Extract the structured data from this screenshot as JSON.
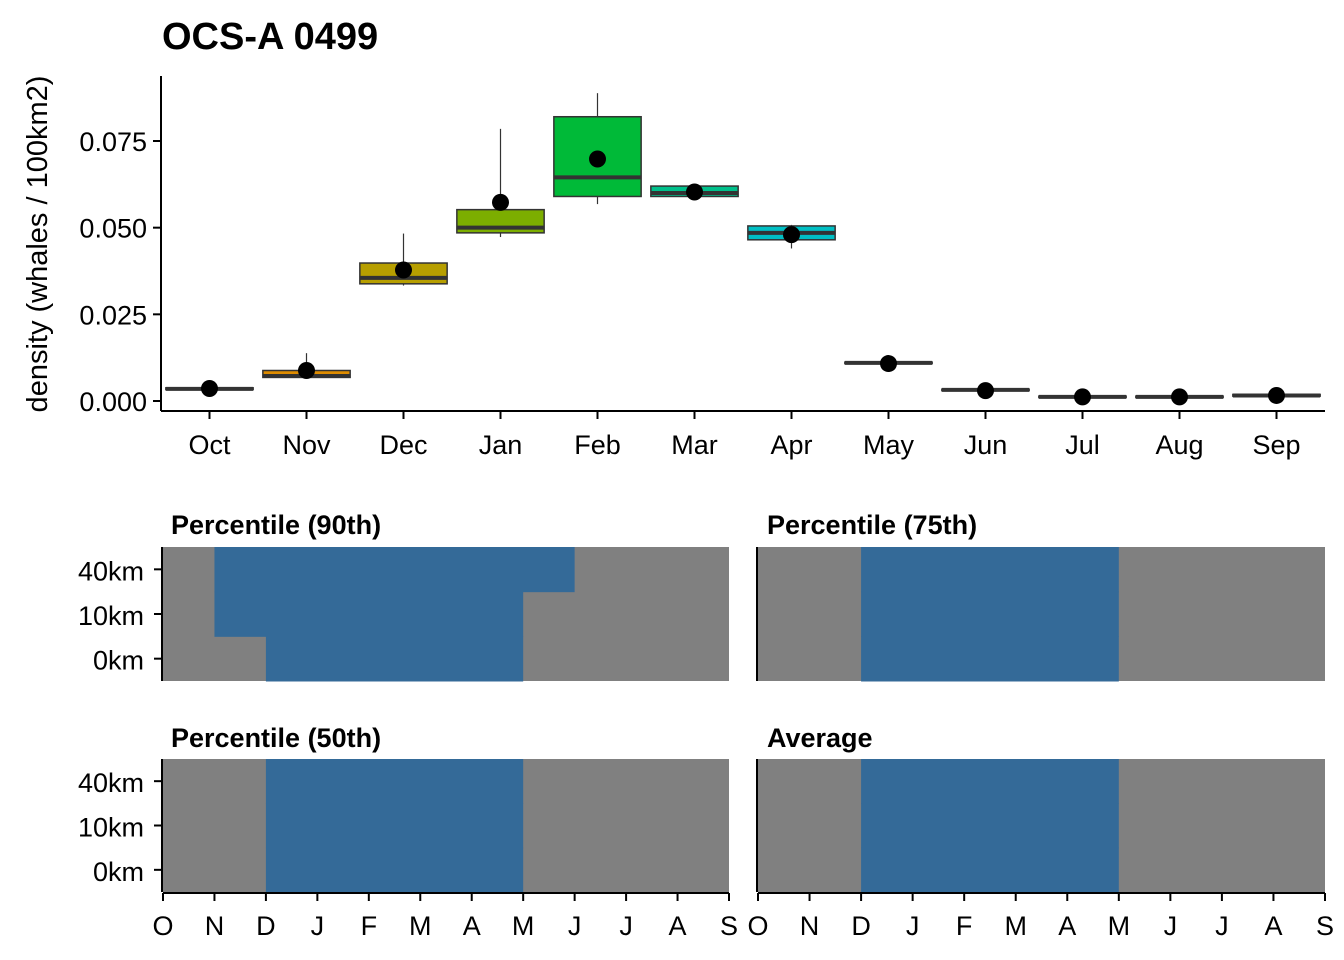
{
  "chart_data": [
    {
      "type": "box",
      "title": "OCS-A 0499",
      "ylabel": "density (whales / 100km2)",
      "xlabel": "",
      "ylim": [
        -0.003,
        0.093
      ],
      "yticks": [
        "0.000",
        "0.025",
        "0.050",
        "0.075"
      ],
      "ytick_values": [
        0.0,
        0.025,
        0.05,
        0.075
      ],
      "categories": [
        "Oct",
        "Nov",
        "Dec",
        "Jan",
        "Feb",
        "Mar",
        "Apr",
        "May",
        "Jun",
        "Jul",
        "Aug",
        "Sep"
      ],
      "boxes": [
        {
          "min": 0.0033,
          "q1": 0.0033,
          "median": 0.0035,
          "q3": 0.0038,
          "max": 0.0038,
          "mean": 0.0036,
          "color": "#F8766D"
        },
        {
          "min": 0.0065,
          "q1": 0.0068,
          "median": 0.0072,
          "q3": 0.0088,
          "max": 0.0138,
          "mean": 0.0088,
          "color": "#DE8C00"
        },
        {
          "min": 0.0333,
          "q1": 0.0338,
          "median": 0.0355,
          "q3": 0.0398,
          "max": 0.0483,
          "mean": 0.0378,
          "color": "#B79F00"
        },
        {
          "min": 0.0473,
          "q1": 0.0485,
          "median": 0.05,
          "q3": 0.0552,
          "max": 0.0785,
          "mean": 0.0573,
          "color": "#7CAE00"
        },
        {
          "min": 0.0568,
          "q1": 0.059,
          "median": 0.0645,
          "q3": 0.082,
          "max": 0.0888,
          "mean": 0.0698,
          "color": "#00BA38"
        },
        {
          "min": 0.059,
          "q1": 0.059,
          "median": 0.06,
          "q3": 0.062,
          "max": 0.062,
          "mean": 0.0603,
          "color": "#00C08B"
        },
        {
          "min": 0.044,
          "q1": 0.0465,
          "median": 0.0485,
          "q3": 0.0505,
          "max": 0.0508,
          "mean": 0.048,
          "color": "#00BFC4"
        },
        {
          "min": 0.0108,
          "q1": 0.0108,
          "median": 0.011,
          "q3": 0.0112,
          "max": 0.0112,
          "mean": 0.0108,
          "color": "#00B4F0"
        },
        {
          "min": 0.003,
          "q1": 0.003,
          "median": 0.0032,
          "q3": 0.0034,
          "max": 0.0034,
          "mean": 0.003,
          "color": "#619CFF"
        },
        {
          "min": 0.001,
          "q1": 0.001,
          "median": 0.0012,
          "q3": 0.0014,
          "max": 0.0014,
          "mean": 0.0012,
          "color": "#C77CFF"
        },
        {
          "min": 0.001,
          "q1": 0.001,
          "median": 0.0012,
          "q3": 0.0014,
          "max": 0.0014,
          "mean": 0.0012,
          "color": "#F564E3"
        },
        {
          "min": 0.0014,
          "q1": 0.0014,
          "median": 0.0016,
          "q3": 0.0019,
          "max": 0.0019,
          "mean": 0.0016,
          "color": "#FF64B0"
        }
      ],
      "mean_marker_color": "#000000",
      "grid": false
    },
    {
      "type": "heatmap",
      "panels": [
        {
          "title": "Percentile (90th)",
          "rows": [
            "40km",
            "10km",
            "0km"
          ],
          "row_months_highlighted": [
            [
              1,
              8
            ],
            [
              1,
              7
            ],
            [
              2,
              7
            ]
          ]
        },
        {
          "title": "Percentile (75th)",
          "rows": [
            "40km",
            "10km",
            "0km"
          ],
          "row_months_highlighted": [
            [
              2,
              7
            ],
            [
              2,
              7
            ],
            [
              2,
              7
            ]
          ]
        },
        {
          "title": "Percentile (50th)",
          "rows": [
            "40km",
            "10km",
            "0km"
          ],
          "row_months_highlighted": [
            [
              2,
              7
            ],
            [
              2,
              7
            ],
            [
              2,
              7
            ]
          ]
        },
        {
          "title": "Average",
          "rows": [
            "40km",
            "10km",
            "0km"
          ],
          "row_months_highlighted": [
            [
              2,
              7
            ],
            [
              2,
              7
            ],
            [
              2,
              7
            ]
          ]
        }
      ],
      "x_tick_labels": [
        "O",
        "N",
        "D",
        "J",
        "F",
        "M",
        "A",
        "M",
        "J",
        "J",
        "A",
        "S"
      ],
      "month_count": 12,
      "highlight_color": "#346A98",
      "background_color": "#808080"
    }
  ]
}
